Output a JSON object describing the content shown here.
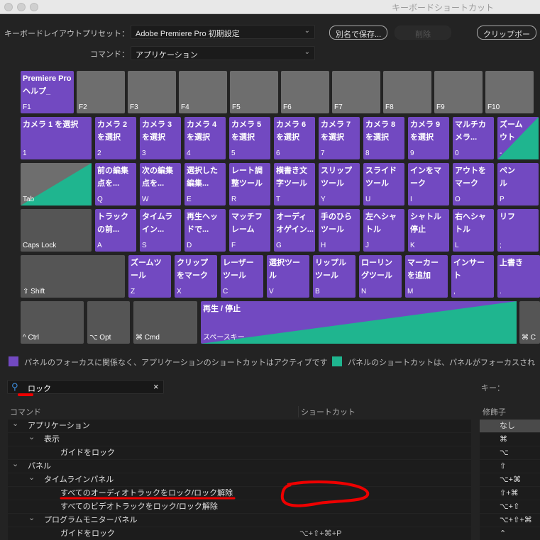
{
  "window": {
    "title": "キーボードショートカット"
  },
  "toolbar": {
    "preset_label": "キーボードレイアウトプリセット：",
    "preset_value": "Adobe Premiere Pro 初期設定",
    "command_label": "コマンド：",
    "command_value": "アプリケーション",
    "save_as": "別名で保存...",
    "delete": "削除",
    "clipboard": "クリップボー"
  },
  "keyboard": {
    "rows": [
      [
        {
          "k": "F1",
          "c": "Premiere Pro\nヘルプ_",
          "t": "purple"
        },
        {
          "k": "F2",
          "t": "gray"
        },
        {
          "k": "F3",
          "t": "gray"
        },
        {
          "k": "F4",
          "t": "gray"
        },
        {
          "k": "F5",
          "t": "gray"
        },
        {
          "k": "F6",
          "t": "gray"
        },
        {
          "k": "F7",
          "t": "gray"
        },
        {
          "k": "F8",
          "t": "gray"
        },
        {
          "k": "F9",
          "t": "gray"
        },
        {
          "k": "F10",
          "t": "gray"
        }
      ],
      [
        {
          "k": "1",
          "c": "カメラ 1 を選択",
          "t": "purple"
        },
        {
          "k": "2",
          "c": "カメラ 2\nを選択",
          "t": "purple"
        },
        {
          "k": "3",
          "c": "カメラ 3\nを選択",
          "t": "purple"
        },
        {
          "k": "4",
          "c": "カメラ 4\nを選択",
          "t": "purple"
        },
        {
          "k": "5",
          "c": "カメラ 5\nを選択",
          "t": "purple"
        },
        {
          "k": "6",
          "c": "カメラ 6\nを選択",
          "t": "purple"
        },
        {
          "k": "7",
          "c": "カメラ 7\nを選択",
          "t": "purple"
        },
        {
          "k": "8",
          "c": "カメラ 8\nを選択",
          "t": "purple"
        },
        {
          "k": "9",
          "c": "カメラ 9\nを選択",
          "t": "purple"
        },
        {
          "k": "0",
          "c": "マルチカ\nメラ...",
          "t": "purple"
        },
        {
          "k": "-",
          "c": "ズーム\nウト",
          "t": "split"
        }
      ],
      [
        {
          "k": "Tab",
          "t": "graysplit"
        },
        {
          "k": "Q",
          "c": "前の編集\n点を...",
          "t": "purple"
        },
        {
          "k": "W",
          "c": "次の編集\n点を...",
          "t": "purple"
        },
        {
          "k": "E",
          "c": "選択した\n編集...",
          "t": "purple"
        },
        {
          "k": "R",
          "c": "レート調\n整ツール",
          "t": "purple"
        },
        {
          "k": "T",
          "c": "横書き文\n字ツール",
          "t": "purple"
        },
        {
          "k": "Y",
          "c": "スリップ\nツール",
          "t": "purple"
        },
        {
          "k": "U",
          "c": "スライド\nツール",
          "t": "purple"
        },
        {
          "k": "I",
          "c": "インをマ\nーク",
          "t": "purple"
        },
        {
          "k": "O",
          "c": "アウトを\nマーク",
          "t": "purple"
        },
        {
          "k": "P",
          "c": "ペン\nル",
          "t": "purple"
        }
      ],
      [
        {
          "k": "Caps Lock",
          "t": "dark"
        },
        {
          "k": "A",
          "c": "トラック\nの前...",
          "t": "purple"
        },
        {
          "k": "S",
          "c": "タイムラ\nイン...",
          "t": "purple"
        },
        {
          "k": "D",
          "c": "再生ヘッ\nドで...",
          "t": "purple"
        },
        {
          "k": "F",
          "c": "マッチフ\nレーム",
          "t": "purple"
        },
        {
          "k": "G",
          "c": "オーディ\nオゲイン...",
          "t": "purple"
        },
        {
          "k": "H",
          "c": "手のひら\nツール",
          "t": "purple"
        },
        {
          "k": "J",
          "c": "左へシャ\nトル",
          "t": "purple"
        },
        {
          "k": "K",
          "c": "シャトル\n停止",
          "t": "purple"
        },
        {
          "k": "L",
          "c": "右へシャ\nトル",
          "t": "purple"
        },
        {
          "k": ";",
          "c": "リフ",
          "t": "purple"
        }
      ],
      [
        {
          "k": "⇧ Shift",
          "t": "dark"
        },
        {
          "k": "Z",
          "c": "ズームツ\nール",
          "t": "purple"
        },
        {
          "k": "X",
          "c": "クリップ\nをマーク",
          "t": "purple"
        },
        {
          "k": "C",
          "c": "レーザー\nツール",
          "t": "purple"
        },
        {
          "k": "V",
          "c": "選択ツー\nル",
          "t": "purple"
        },
        {
          "k": "B",
          "c": "リップル\nツール",
          "t": "purple"
        },
        {
          "k": "N",
          "c": "ローリン\nグツール",
          "t": "purple"
        },
        {
          "k": "M",
          "c": "マーカー\nを追加",
          "t": "purple"
        },
        {
          "k": ",",
          "c": "インサー\nト",
          "t": "purple"
        },
        {
          "k": ".",
          "c": "上書き",
          "t": "purple"
        }
      ],
      [
        {
          "k": "^ Ctrl",
          "t": "dark"
        },
        {
          "k": "⌥ Opt",
          "t": "dark"
        },
        {
          "k": "⌘ Cmd",
          "t": "dark"
        },
        {
          "k": "スペースキー",
          "c": "再生 / 停止",
          "t": "spacesplit"
        },
        {
          "k": "⌘ C",
          "t": "dark"
        }
      ]
    ]
  },
  "colors": {
    "app": "#7249c1",
    "panel": "#1fb58f"
  },
  "legend": {
    "app": "パネルのフォーカスに関係なく、アプリケーションのショートカットはアクティブです",
    "panel": "パネルのショートカットは、パネルがフォーカスされ"
  },
  "search": {
    "value": "ロック",
    "icon": "search-icon",
    "clear": "×"
  },
  "key_label": "キー：",
  "table": {
    "headers": [
      "コマンド",
      "ショートカット",
      "修飾子"
    ],
    "rows": [
      {
        "level": 0,
        "exp": true,
        "label": "アプリケーション",
        "shortcut": ""
      },
      {
        "level": 1,
        "exp": true,
        "label": "表示",
        "shortcut": ""
      },
      {
        "level": 2,
        "label": "ガイドをロック",
        "shortcut": ""
      },
      {
        "level": 0,
        "exp": true,
        "label": "パネル",
        "shortcut": ""
      },
      {
        "level": 1,
        "exp": true,
        "label": "タイムラインパネル",
        "shortcut": ""
      },
      {
        "level": 2,
        "label": "すべてのオーディオトラックをロック/ロック解除",
        "shortcut": ""
      },
      {
        "level": 2,
        "label": "すべてのビデオトラックをロック/ロック解除",
        "shortcut": ""
      },
      {
        "level": 1,
        "exp": true,
        "label": "プログラムモニターパネル",
        "shortcut": ""
      },
      {
        "level": 2,
        "label": "ガイドをロック",
        "shortcut": "⌥+⇧+⌘+P"
      }
    ],
    "modifiers": [
      "なし",
      "⌘",
      "⌥",
      "⇧",
      "⌥+⌘",
      "⇧+⌘",
      "⌥+⇧",
      "⌥+⇧+⌘",
      "⌃"
    ]
  }
}
